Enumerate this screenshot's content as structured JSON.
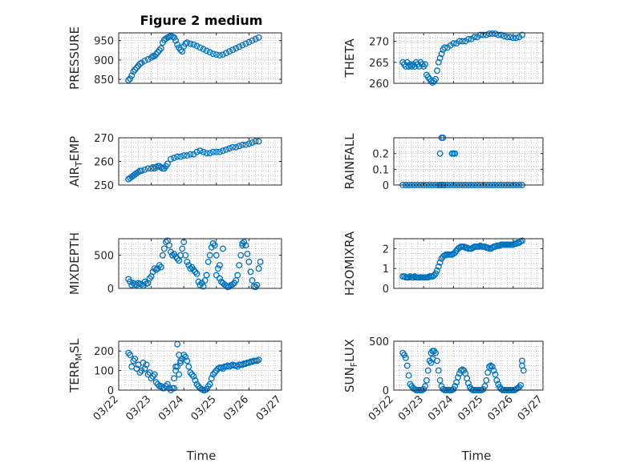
{
  "figure": {
    "title": "Figure 2 medium",
    "xlabel": "Time"
  },
  "colors": {
    "marker": "#0072BD",
    "axis": "#262626"
  },
  "chart_data": [
    {
      "type": "scatter",
      "ylabel": "PRESSURE",
      "ylim": [
        840,
        970
      ],
      "yticks": [
        850,
        900,
        950
      ],
      "xlim": [
        0,
        5
      ],
      "xticks": [
        "03/22",
        "03/23",
        "03/24",
        "03/25",
        "03/26",
        "03/27"
      ],
      "show_xticklabels": false,
      "grid": true,
      "x": [
        0.3,
        0.35,
        0.4,
        0.45,
        0.5,
        0.55,
        0.6,
        0.65,
        0.7,
        0.8,
        0.9,
        1.0,
        1.05,
        1.1,
        1.15,
        1.2,
        1.25,
        1.3,
        1.35,
        1.4,
        1.45,
        1.5,
        1.55,
        1.6,
        1.65,
        1.7,
        1.75,
        1.8,
        1.85,
        1.9,
        1.95,
        2.0,
        2.05,
        2.1,
        2.2,
        2.3,
        2.4,
        2.5,
        2.6,
        2.7,
        2.8,
        2.9,
        3.0,
        3.1,
        3.2,
        3.3,
        3.4,
        3.5,
        3.6,
        3.7,
        3.8,
        3.9,
        4.0,
        4.1,
        4.2,
        4.3
      ],
      "y": [
        848,
        852,
        860,
        870,
        875,
        880,
        885,
        890,
        893,
        898,
        902,
        906,
        910,
        910,
        915,
        920,
        925,
        930,
        945,
        952,
        955,
        958,
        960,
        962,
        960,
        958,
        950,
        940,
        932,
        926,
        922,
        935,
        942,
        945,
        942,
        940,
        936,
        932,
        928,
        924,
        920,
        916,
        914,
        912,
        914,
        918,
        922,
        926,
        930,
        934,
        938,
        942,
        946,
        950,
        954,
        958
      ]
    },
    {
      "type": "scatter",
      "ylabel": "THETA",
      "ylim": [
        260,
        272
      ],
      "yticks": [
        260,
        265,
        270
      ],
      "xlim": [
        0,
        5
      ],
      "xticks": [
        "03/22",
        "03/23",
        "03/24",
        "03/25",
        "03/26",
        "03/27"
      ],
      "show_xticklabels": false,
      "grid": true,
      "x": [
        0.3,
        0.35,
        0.4,
        0.45,
        0.5,
        0.55,
        0.6,
        0.65,
        0.7,
        0.75,
        0.8,
        0.85,
        0.9,
        0.95,
        1.0,
        1.05,
        1.1,
        1.15,
        1.2,
        1.25,
        1.3,
        1.35,
        1.4,
        1.45,
        1.5,
        1.55,
        1.6,
        1.65,
        1.7,
        1.8,
        1.9,
        2.0,
        2.1,
        2.2,
        2.3,
        2.4,
        2.5,
        2.6,
        2.7,
        2.8,
        2.9,
        3.0,
        3.1,
        3.2,
        3.3,
        3.4,
        3.5,
        3.6,
        3.7,
        3.8,
        3.9,
        4.0,
        4.1,
        4.2,
        4.3
      ],
      "y": [
        265,
        264.5,
        264,
        265,
        264,
        264.5,
        264,
        264.5,
        264,
        265,
        264.5,
        264,
        265,
        264.5,
        264,
        264.5,
        262,
        261.5,
        261,
        260.5,
        260.2,
        260.5,
        261,
        263,
        265,
        266,
        267,
        268,
        268.5,
        268.5,
        269,
        269.5,
        269.5,
        270,
        270,
        270,
        270.5,
        270.5,
        271,
        271,
        271.5,
        271.5,
        271.5,
        271.8,
        271.8,
        271.8,
        271.5,
        271.5,
        271.2,
        271,
        271,
        270.8,
        270.8,
        271,
        271.5
      ]
    },
    {
      "type": "scatter",
      "ylabel": "AIR_TEMP",
      "ylim": [
        250,
        270
      ],
      "yticks": [
        250,
        260,
        270
      ],
      "xlim": [
        0,
        5
      ],
      "xticks": [
        "03/22",
        "03/23",
        "03/24",
        "03/25",
        "03/26",
        "03/27"
      ],
      "show_xticklabels": false,
      "grid": true,
      "x": [
        0.3,
        0.35,
        0.4,
        0.45,
        0.5,
        0.55,
        0.6,
        0.65,
        0.7,
        0.8,
        0.9,
        1.0,
        1.05,
        1.1,
        1.15,
        1.2,
        1.25,
        1.3,
        1.35,
        1.4,
        1.45,
        1.5,
        1.6,
        1.7,
        1.8,
        1.9,
        2.0,
        2.1,
        2.2,
        2.3,
        2.4,
        2.5,
        2.6,
        2.7,
        2.8,
        2.9,
        3.0,
        3.1,
        3.2,
        3.3,
        3.4,
        3.5,
        3.6,
        3.7,
        3.8,
        3.9,
        4.0,
        4.1,
        4.2,
        4.3
      ],
      "y": [
        252.5,
        253,
        253.5,
        254,
        254.5,
        255,
        255.5,
        256,
        256,
        256.5,
        257,
        257,
        257.5,
        257,
        257.5,
        258,
        258,
        257.5,
        257,
        257,
        258,
        259,
        261,
        261.5,
        262,
        262,
        262.5,
        262.5,
        263,
        263,
        264,
        264.5,
        264,
        263.5,
        263.5,
        264,
        264,
        264,
        264.5,
        265,
        265.5,
        266,
        266,
        266.5,
        267,
        267,
        267.5,
        268,
        268.5,
        268.5
      ]
    },
    {
      "type": "scatter",
      "ylabel": "RAINFALL",
      "ylim": [
        0,
        0.3
      ],
      "yticks": [
        0,
        0.1,
        0.2
      ],
      "xlim": [
        0,
        5
      ],
      "xticks": [
        "03/22",
        "03/23",
        "03/24",
        "03/25",
        "03/26",
        "03/27"
      ],
      "show_xticklabels": false,
      "grid": true,
      "x": [
        0.3,
        0.4,
        0.5,
        0.6,
        0.7,
        0.8,
        0.9,
        1.0,
        1.1,
        1.2,
        1.3,
        1.4,
        1.5,
        1.55,
        1.6,
        1.65,
        1.7,
        1.8,
        1.9,
        2.0,
        2.1,
        2.2,
        2.3,
        2.4,
        2.5,
        2.6,
        2.7,
        2.8,
        2.9,
        3.0,
        3.1,
        3.2,
        3.3,
        3.4,
        3.5,
        3.6,
        3.7,
        3.8,
        3.9,
        4.0,
        4.1,
        4.2,
        4.3,
        1.55,
        1.6,
        1.65,
        1.95,
        2.0,
        2.05
      ],
      "y": [
        0,
        0,
        0,
        0,
        0,
        0,
        0,
        0,
        0,
        0,
        0,
        0,
        0,
        0,
        0,
        0,
        0,
        0,
        0,
        0,
        0,
        0,
        0,
        0,
        0,
        0,
        0,
        0,
        0,
        0,
        0,
        0,
        0,
        0,
        0,
        0,
        0,
        0,
        0,
        0,
        0,
        0,
        0,
        0.2,
        0.3,
        0.3,
        0.2,
        0.2,
        0.2
      ]
    },
    {
      "type": "scatter",
      "ylabel": "MIXDEPTH",
      "ylim": [
        0,
        750
      ],
      "yticks": [
        0,
        500
      ],
      "xlim": [
        0,
        5
      ],
      "xticks": [
        "03/22",
        "03/23",
        "03/24",
        "03/25",
        "03/26",
        "03/27"
      ],
      "show_xticklabels": false,
      "grid": true,
      "x": [
        0.3,
        0.35,
        0.4,
        0.45,
        0.5,
        0.55,
        0.6,
        0.65,
        0.7,
        0.75,
        0.8,
        0.85,
        0.9,
        0.95,
        1.0,
        1.05,
        1.1,
        1.15,
        1.2,
        1.25,
        1.3,
        1.35,
        1.4,
        1.45,
        1.5,
        1.55,
        1.6,
        1.65,
        1.7,
        1.75,
        1.8,
        1.85,
        1.9,
        1.95,
        2.0,
        2.05,
        2.1,
        2.15,
        2.2,
        2.25,
        2.3,
        2.35,
        2.4,
        2.45,
        2.5,
        2.55,
        2.6,
        2.65,
        2.7,
        2.75,
        2.8,
        2.85,
        2.9,
        2.95,
        3.0,
        3.05,
        3.1,
        3.15,
        3.2,
        3.25,
        3.3,
        3.35,
        3.4,
        3.45,
        3.5,
        3.55,
        3.6,
        3.65,
        3.7,
        3.75,
        3.8,
        3.85,
        3.9,
        3.95,
        4.0,
        4.05,
        4.1,
        4.15,
        4.2,
        4.25,
        4.3,
        4.35,
        3.0,
        3.1,
        3.2,
        2.9,
        3.8
      ],
      "y": [
        140,
        100,
        50,
        80,
        60,
        50,
        80,
        70,
        60,
        40,
        100,
        70,
        80,
        150,
        180,
        250,
        300,
        280,
        300,
        350,
        320,
        500,
        600,
        700,
        720,
        650,
        550,
        500,
        520,
        480,
        450,
        420,
        500,
        600,
        700,
        500,
        400,
        350,
        300,
        320,
        280,
        250,
        220,
        100,
        50,
        80,
        30,
        120,
        200,
        400,
        500,
        620,
        680,
        650,
        500,
        300,
        150,
        100,
        80,
        60,
        40,
        20,
        30,
        50,
        60,
        80,
        120,
        200,
        350,
        500,
        650,
        700,
        650,
        520,
        400,
        250,
        120,
        30,
        20,
        50,
        300,
        400,
        200,
        350,
        600,
        680,
        680
      ]
    },
    {
      "type": "scatter",
      "ylabel": "H2OMIXRA",
      "ylim": [
        0,
        2.5
      ],
      "yticks": [
        0,
        1,
        2
      ],
      "xlim": [
        0,
        5
      ],
      "xticks": [
        "03/22",
        "03/23",
        "03/24",
        "03/25",
        "03/26",
        "03/27"
      ],
      "show_xticklabels": false,
      "grid": true,
      "x": [
        0.3,
        0.35,
        0.4,
        0.45,
        0.5,
        0.55,
        0.6,
        0.65,
        0.7,
        0.75,
        0.8,
        0.85,
        0.9,
        0.95,
        1.0,
        1.05,
        1.1,
        1.15,
        1.2,
        1.25,
        1.3,
        1.35,
        1.4,
        1.45,
        1.5,
        1.55,
        1.6,
        1.65,
        1.7,
        1.75,
        1.8,
        1.85,
        1.9,
        1.95,
        2.0,
        2.05,
        2.1,
        2.15,
        2.2,
        2.25,
        2.3,
        2.35,
        2.4,
        2.45,
        2.5,
        2.55,
        2.6,
        2.65,
        2.7,
        2.75,
        2.8,
        2.85,
        2.9,
        2.95,
        3.0,
        3.05,
        3.1,
        3.15,
        3.2,
        3.25,
        3.3,
        3.35,
        3.4,
        3.45,
        3.5,
        3.55,
        3.6,
        3.65,
        3.7,
        3.75,
        3.8,
        3.85,
        3.9,
        3.95,
        4.0,
        4.05,
        4.1,
        4.15,
        4.2,
        4.25,
        4.3
      ],
      "y": [
        0.6,
        0.6,
        0.55,
        0.55,
        0.55,
        0.6,
        0.55,
        0.55,
        0.6,
        0.55,
        0.55,
        0.55,
        0.55,
        0.55,
        0.55,
        0.55,
        0.55,
        0.55,
        0.6,
        0.6,
        0.6,
        0.65,
        0.75,
        0.9,
        1.1,
        1.3,
        1.5,
        1.6,
        1.65,
        1.7,
        1.7,
        1.7,
        1.7,
        1.7,
        1.75,
        1.8,
        1.9,
        2.0,
        2.05,
        2.1,
        2.1,
        2.1,
        2.05,
        2.05,
        2.0,
        2.0,
        2.0,
        2.05,
        2.1,
        2.1,
        2.1,
        2.1,
        2.15,
        2.1,
        2.1,
        2.1,
        2.05,
        2.05,
        2.0,
        2.0,
        2.05,
        2.1,
        2.1,
        2.15,
        2.15,
        2.15,
        2.2,
        2.2,
        2.2,
        2.2,
        2.2,
        2.2,
        2.2,
        2.2,
        2.2,
        2.25,
        2.25,
        2.3,
        2.3,
        2.35,
        2.4
      ]
    },
    {
      "type": "scatter",
      "ylabel": "TERR_MSL",
      "ylim": [
        0,
        250
      ],
      "yticks": [
        0,
        100,
        200
      ],
      "xlim": [
        0,
        5
      ],
      "xticks": [
        "03/22",
        "03/23",
        "03/24",
        "03/25",
        "03/26",
        "03/27"
      ],
      "show_xticklabels": true,
      "grid": true,
      "x": [
        0.3,
        0.35,
        0.4,
        0.45,
        0.5,
        0.55,
        0.6,
        0.65,
        0.7,
        0.75,
        0.8,
        0.85,
        0.9,
        0.95,
        1.0,
        1.05,
        1.1,
        1.15,
        1.2,
        1.25,
        1.3,
        1.35,
        1.4,
        1.45,
        1.5,
        1.55,
        1.6,
        1.65,
        1.7,
        1.75,
        1.8,
        1.85,
        1.9,
        1.95,
        2.0,
        2.05,
        2.1,
        2.15,
        2.2,
        2.25,
        2.3,
        2.35,
        2.4,
        2.45,
        2.5,
        2.55,
        2.6,
        2.65,
        2.7,
        2.75,
        2.8,
        2.85,
        2.9,
        2.95,
        3.0,
        3.05,
        3.1,
        3.15,
        3.2,
        3.25,
        3.3,
        3.35,
        3.4,
        3.45,
        3.5,
        3.55,
        3.6,
        3.65,
        3.7,
        3.75,
        3.8,
        3.85,
        3.9,
        3.95,
        4.0,
        4.05,
        4.1,
        4.15,
        4.2,
        4.25,
        4.3,
        1.8,
        1.85,
        1.9,
        1.7,
        1.75
      ],
      "y": [
        190,
        180,
        120,
        150,
        160,
        110,
        130,
        90,
        100,
        140,
        110,
        130,
        80,
        90,
        60,
        70,
        80,
        40,
        30,
        20,
        20,
        10,
        10,
        20,
        30,
        10,
        0,
        10,
        10,
        100,
        120,
        80,
        150,
        160,
        180,
        170,
        150,
        120,
        90,
        80,
        70,
        50,
        30,
        20,
        10,
        5,
        0,
        0,
        5,
        20,
        30,
        60,
        80,
        90,
        100,
        110,
        115,
        115,
        110,
        120,
        120,
        125,
        120,
        125,
        130,
        125,
        125,
        120,
        130,
        130,
        130,
        135,
        135,
        140,
        140,
        145,
        145,
        150,
        150,
        150,
        155,
        235,
        180,
        140,
        60,
        120
      ]
    },
    {
      "type": "scatter",
      "ylabel": "SUN_FLUX",
      "ylim": [
        0,
        500
      ],
      "yticks": [
        0,
        500
      ],
      "xlim": [
        0,
        5
      ],
      "xticks": [
        "03/22",
        "03/23",
        "03/24",
        "03/25",
        "03/26",
        "03/27"
      ],
      "show_xticklabels": true,
      "grid": true,
      "x": [
        0.3,
        0.35,
        0.4,
        0.45,
        0.5,
        0.55,
        0.6,
        0.65,
        0.7,
        0.75,
        0.8,
        0.85,
        0.9,
        0.95,
        1.0,
        1.05,
        1.1,
        1.15,
        1.2,
        1.25,
        1.3,
        1.35,
        1.4,
        1.45,
        1.5,
        1.55,
        1.6,
        1.65,
        1.7,
        1.75,
        1.8,
        1.85,
        1.9,
        1.95,
        2.0,
        2.05,
        2.1,
        2.15,
        2.2,
        2.25,
        2.3,
        2.35,
        2.4,
        2.45,
        2.5,
        2.55,
        2.6,
        2.65,
        2.7,
        2.75,
        2.8,
        2.85,
        2.9,
        2.95,
        3.0,
        3.05,
        3.1,
        3.15,
        3.2,
        3.25,
        3.3,
        3.35,
        3.4,
        3.45,
        3.5,
        3.55,
        3.6,
        3.65,
        3.7,
        3.75,
        3.8,
        3.85,
        3.9,
        3.95,
        4.0,
        4.05,
        4.1,
        4.15,
        4.2,
        4.25,
        4.3,
        4.35,
        4.3,
        1.25,
        1.3
      ],
      "y": [
        380,
        360,
        330,
        250,
        150,
        60,
        40,
        20,
        10,
        0,
        0,
        0,
        0,
        0,
        10,
        40,
        100,
        200,
        300,
        380,
        400,
        400,
        380,
        300,
        200,
        100,
        40,
        10,
        0,
        0,
        0,
        0,
        0,
        0,
        10,
        40,
        80,
        130,
        170,
        200,
        210,
        200,
        170,
        120,
        70,
        30,
        10,
        0,
        0,
        0,
        0,
        0,
        0,
        0,
        10,
        40,
        100,
        180,
        240,
        250,
        240,
        200,
        160,
        100,
        60,
        30,
        10,
        0,
        0,
        0,
        0,
        0,
        0,
        0,
        0,
        0,
        10,
        20,
        30,
        50,
        300,
        200,
        250,
        280,
        320
      ]
    }
  ]
}
